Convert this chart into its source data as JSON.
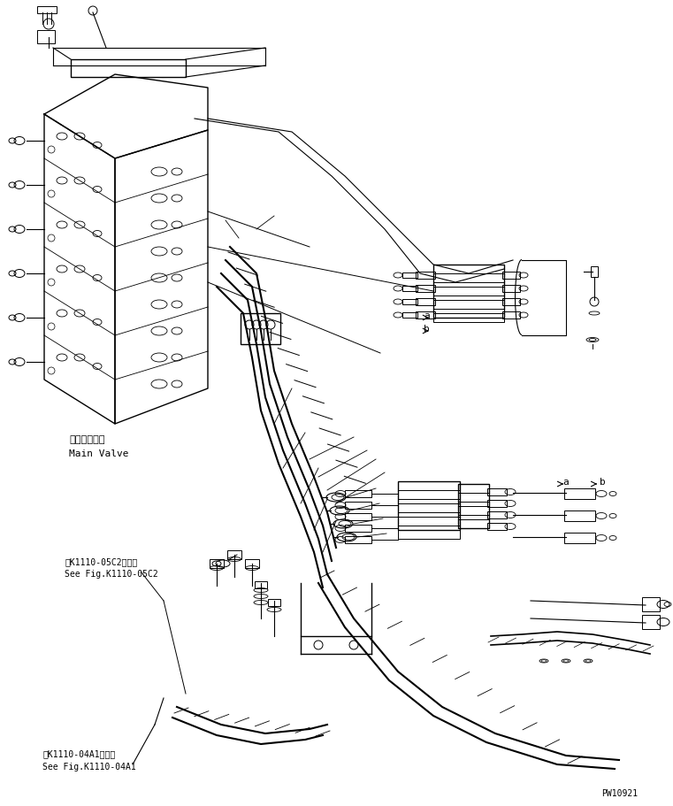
{
  "bg_color": "#ffffff",
  "line_color": "#000000",
  "fig_width": 7.61,
  "fig_height": 9.12,
  "dpi": 100,
  "title_text": "PW10921",
  "label_main_valve_jp": "メインバルブ",
  "label_main_valve_en": "Main Valve",
  "label_fig1_jp": "第K1110-05C2図参照",
  "label_fig1_en": "See Fig.K1110-05C2",
  "label_fig2_jp": "第K1110-04A1図参照",
  "label_fig2_en": "See Fig.K1110-04A1",
  "label_a1": "a",
  "label_b1": "b",
  "label_a2": "a",
  "label_b2": "b"
}
